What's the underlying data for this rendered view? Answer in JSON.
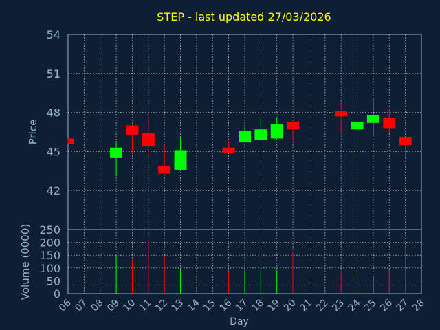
{
  "chart_data": {
    "type": "candlestick",
    "title": "STEP - last updated 27/03/2026",
    "ylabel": "Price",
    "volume_ylabel": "Volume (0000)",
    "xlabel": "Day",
    "x_ticks": [
      "06",
      "07",
      "08",
      "09",
      "10",
      "11",
      "12",
      "13",
      "14",
      "15",
      "16",
      "17",
      "18",
      "19",
      "20",
      "21",
      "22",
      "23",
      "24",
      "25",
      "26",
      "27",
      "28"
    ],
    "price_ticks": [
      "42",
      "45",
      "48",
      "51",
      "54"
    ],
    "volume_ticks": [
      "0",
      "50",
      "100",
      "150",
      "200",
      "250"
    ],
    "price_ylim": [
      39.0,
      54.0
    ],
    "volume_ylim": [
      0,
      250
    ],
    "grid": true,
    "colors": {
      "background": "#0f1f33",
      "up": "#00ff00",
      "down": "#ff0000",
      "title": "#ffff00",
      "axis_text": "#8fb0d0",
      "grid": "#ffffff"
    },
    "candles": [
      {
        "day": "06",
        "open": 46.0,
        "close": 45.6,
        "high": 46.0,
        "low": 45.6
      },
      {
        "day": "09",
        "open": 44.5,
        "close": 45.3,
        "high": 45.8,
        "low": 43.1
      },
      {
        "day": "10",
        "open": 47.0,
        "close": 46.3,
        "high": 47.0,
        "low": 44.9
      },
      {
        "day": "11",
        "open": 46.4,
        "close": 45.4,
        "high": 47.7,
        "low": 44.6
      },
      {
        "day": "12",
        "open": 43.9,
        "close": 43.3,
        "high": 45.5,
        "low": 43.3
      },
      {
        "day": "13",
        "open": 43.6,
        "close": 45.1,
        "high": 46.1,
        "low": 43.5
      },
      {
        "day": "16",
        "open": 45.3,
        "close": 44.9,
        "high": 45.8,
        "low": 44.9
      },
      {
        "day": "17",
        "open": 45.7,
        "close": 46.6,
        "high": 46.9,
        "low": 45.7
      },
      {
        "day": "18",
        "open": 45.9,
        "close": 46.7,
        "high": 47.5,
        "low": 45.9
      },
      {
        "day": "19",
        "open": 46.0,
        "close": 47.1,
        "high": 47.6,
        "low": 46.0
      },
      {
        "day": "20",
        "open": 47.3,
        "close": 46.7,
        "high": 47.3,
        "low": 45.8
      },
      {
        "day": "23",
        "open": 48.1,
        "close": 47.7,
        "high": 48.6,
        "low": 46.3
      },
      {
        "day": "24",
        "open": 46.7,
        "close": 47.3,
        "high": 47.3,
        "low": 45.5
      },
      {
        "day": "25",
        "open": 47.2,
        "close": 47.8,
        "high": 49.1,
        "low": 46.1
      },
      {
        "day": "26",
        "open": 47.6,
        "close": 46.8,
        "high": 48.3,
        "low": 46.4
      },
      {
        "day": "27",
        "open": 46.1,
        "close": 45.5,
        "high": 46.1,
        "low": 44.5
      }
    ],
    "volume": [
      {
        "day": "06",
        "value": 0
      },
      {
        "day": "09",
        "value": 150
      },
      {
        "day": "10",
        "value": 135
      },
      {
        "day": "11",
        "value": 205
      },
      {
        "day": "12",
        "value": 145
      },
      {
        "day": "13",
        "value": 95
      },
      {
        "day": "16",
        "value": 85
      },
      {
        "day": "17",
        "value": 92
      },
      {
        "day": "18",
        "value": 105
      },
      {
        "day": "19",
        "value": 92
      },
      {
        "day": "20",
        "value": 165
      },
      {
        "day": "23",
        "value": 88
      },
      {
        "day": "24",
        "value": 80
      },
      {
        "day": "25",
        "value": 70
      },
      {
        "day": "26",
        "value": 95
      },
      {
        "day": "27",
        "value": 190
      }
    ]
  }
}
